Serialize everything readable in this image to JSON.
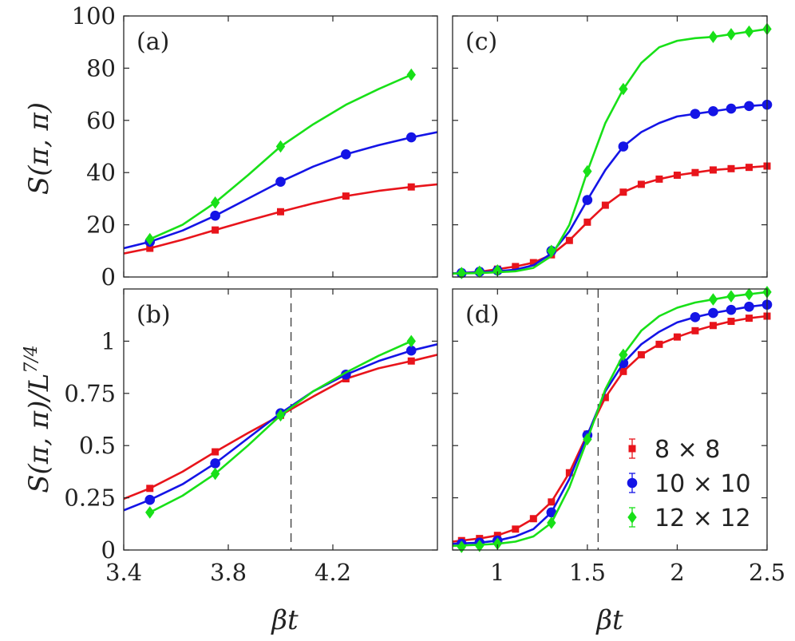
{
  "figure": {
    "ylabel_top": "S(π, π)",
    "ylabel_bottom": "S(π, π)/L",
    "ylabel_bottom_exp": "7/4",
    "xlabel": "βt"
  },
  "colors": {
    "8x8": "#e8141b",
    "10x10": "#1414e6",
    "12x12": "#18e018",
    "axis": "#262626",
    "dashed": "#444444"
  },
  "legend": {
    "placement": "bottom-right of panel (d)",
    "entries": [
      {
        "key": "8x8",
        "label": "8 × 8",
        "marker": "square"
      },
      {
        "key": "10x10",
        "label": "10 × 10",
        "marker": "circle"
      },
      {
        "key": "12x12",
        "label": "12 × 12",
        "marker": "diamond"
      }
    ]
  },
  "chart_data": [
    {
      "panel": "(a)",
      "type": "line",
      "xlim": [
        3.4,
        4.6
      ],
      "ylim": [
        0,
        100
      ],
      "xticks": [
        3.4,
        3.8,
        4.2
      ],
      "xtick_labels": [
        "3.4",
        "3.8",
        "4.2"
      ],
      "yticks": [
        0,
        20,
        40,
        60,
        80,
        100
      ],
      "ytick_labels": [
        "0",
        "20",
        "40",
        "60",
        "80",
        "100"
      ],
      "show_xtick_labels": false,
      "show_ytick_labels": true,
      "series": [
        {
          "key": "8x8",
          "x": [
            3.5,
            3.75,
            4.0,
            4.25,
            4.5
          ],
          "y": [
            11.0,
            18.0,
            25.0,
            31.0,
            34.5
          ],
          "curve_x": [
            3.4,
            3.5,
            3.625,
            3.75,
            3.875,
            4.0,
            4.125,
            4.25,
            4.375,
            4.5,
            4.6
          ],
          "curve_y": [
            9.0,
            11.0,
            14.3,
            18.0,
            21.6,
            25.0,
            28.2,
            31.0,
            33.0,
            34.5,
            35.5
          ]
        },
        {
          "key": "10x10",
          "x": [
            3.5,
            3.75,
            4.0,
            4.25,
            4.5
          ],
          "y": [
            13.5,
            23.5,
            36.5,
            47.0,
            53.5
          ],
          "curve_x": [
            3.4,
            3.5,
            3.625,
            3.75,
            3.875,
            4.0,
            4.125,
            4.25,
            4.375,
            4.5,
            4.6
          ],
          "curve_y": [
            11.0,
            13.5,
            17.8,
            23.5,
            30.0,
            36.5,
            42.3,
            47.0,
            50.5,
            53.5,
            55.5
          ]
        },
        {
          "key": "12x12",
          "x": [
            3.5,
            3.75,
            4.0,
            4.5
          ],
          "y": [
            14.5,
            28.5,
            50.0,
            77.5
          ],
          "curve_x": [
            3.5,
            3.625,
            3.75,
            3.875,
            4.0,
            4.125,
            4.25,
            4.375,
            4.5
          ],
          "curve_y": [
            14.5,
            20.0,
            28.5,
            39.0,
            50.0,
            58.5,
            66.0,
            72.0,
            77.5
          ]
        }
      ]
    },
    {
      "panel": "(b)",
      "type": "line",
      "xlim": [
        3.4,
        4.6
      ],
      "ylim": [
        0,
        1.25
      ],
      "xticks": [
        3.4,
        3.8,
        4.2
      ],
      "xtick_labels": [
        "3.4",
        "3.8",
        "4.2"
      ],
      "yticks": [
        0,
        0.25,
        0.5,
        0.75,
        1
      ],
      "ytick_labels": [
        "0",
        "0.25",
        "0.5",
        "0.75",
        "1"
      ],
      "show_xtick_labels": true,
      "show_ytick_labels": true,
      "vline": 4.04,
      "series": [
        {
          "key": "8x8",
          "x": [
            3.5,
            3.75,
            4.0,
            4.25,
            4.5
          ],
          "y": [
            0.295,
            0.47,
            0.645,
            0.82,
            0.905
          ],
          "curve_x": [
            3.4,
            3.5,
            3.625,
            3.75,
            3.875,
            4.0,
            4.125,
            4.25,
            4.375,
            4.5,
            4.6
          ],
          "curve_y": [
            0.245,
            0.295,
            0.375,
            0.47,
            0.56,
            0.645,
            0.735,
            0.82,
            0.87,
            0.905,
            0.935
          ]
        },
        {
          "key": "10x10",
          "x": [
            3.5,
            3.75,
            4.0,
            4.25,
            4.5
          ],
          "y": [
            0.24,
            0.415,
            0.655,
            0.84,
            0.955
          ],
          "curve_x": [
            3.4,
            3.5,
            3.625,
            3.75,
            3.875,
            4.0,
            4.125,
            4.25,
            4.375,
            4.5,
            4.6
          ],
          "curve_y": [
            0.19,
            0.24,
            0.315,
            0.415,
            0.535,
            0.655,
            0.76,
            0.84,
            0.905,
            0.955,
            0.985
          ]
        },
        {
          "key": "12x12",
          "x": [
            3.5,
            3.75,
            4.0,
            4.5
          ],
          "y": [
            0.18,
            0.365,
            0.645,
            1.0
          ],
          "curve_x": [
            3.5,
            3.625,
            3.75,
            3.875,
            4.0,
            4.125,
            4.25,
            4.375,
            4.5
          ],
          "curve_y": [
            0.18,
            0.26,
            0.365,
            0.5,
            0.645,
            0.76,
            0.85,
            0.93,
            1.0
          ]
        }
      ]
    },
    {
      "panel": "(c)",
      "type": "line",
      "xlim": [
        0.75,
        2.5
      ],
      "ylim": [
        0,
        100
      ],
      "xticks": [
        1,
        1.5,
        2,
        2.5
      ],
      "xtick_labels": [
        "1",
        "1.5",
        "2",
        "2.5"
      ],
      "yticks": [
        0,
        20,
        40,
        60,
        80,
        100
      ],
      "ytick_labels": [
        "0",
        "20",
        "40",
        "60",
        "80",
        "100"
      ],
      "show_xtick_labels": false,
      "show_ytick_labels": false,
      "series": [
        {
          "key": "8x8",
          "x": [
            0.8,
            0.9,
            1.0,
            1.1,
            1.2,
            1.3,
            1.4,
            1.5,
            1.6,
            1.7,
            1.8,
            1.9,
            2.0,
            2.1,
            2.2,
            2.3,
            2.4,
            2.5
          ],
          "y": [
            1.5,
            2.0,
            3.0,
            4.0,
            5.5,
            8.5,
            14.0,
            21.0,
            27.5,
            32.5,
            35.5,
            37.5,
            39.0,
            40.0,
            41.0,
            41.5,
            42.0,
            42.5
          ],
          "curve_x": [
            0.75,
            0.8,
            0.9,
            1.0,
            1.1,
            1.2,
            1.3,
            1.4,
            1.5,
            1.6,
            1.7,
            1.8,
            1.9,
            2.0,
            2.1,
            2.2,
            2.3,
            2.4,
            2.5
          ],
          "curve_y": [
            1.4,
            1.5,
            2.0,
            3.0,
            4.0,
            5.5,
            8.5,
            14.0,
            21.0,
            27.5,
            32.5,
            35.5,
            37.5,
            39.0,
            40.0,
            41.0,
            41.5,
            42.0,
            42.5
          ]
        },
        {
          "key": "10x10",
          "x": [
            0.8,
            0.9,
            1.0,
            1.3,
            1.5,
            1.7,
            2.1,
            2.2,
            2.3,
            2.4,
            2.5
          ],
          "y": [
            1.5,
            2.0,
            2.5,
            10.0,
            29.5,
            50.0,
            62.5,
            63.5,
            64.5,
            65.5,
            66.0
          ],
          "curve_x": [
            0.75,
            0.9,
            1.0,
            1.1,
            1.2,
            1.3,
            1.4,
            1.5,
            1.6,
            1.7,
            1.8,
            1.9,
            2.0,
            2.1,
            2.2,
            2.3,
            2.4,
            2.5
          ],
          "curve_y": [
            1.4,
            1.8,
            2.2,
            2.8,
            4.5,
            9.0,
            17.5,
            29.5,
            41.0,
            50.0,
            55.5,
            59.0,
            61.5,
            62.5,
            63.5,
            64.5,
            65.5,
            66.0
          ]
        },
        {
          "key": "12x12",
          "x": [
            0.8,
            0.9,
            1.0,
            1.3,
            1.5,
            1.7,
            2.2,
            2.3,
            2.4,
            2.5
          ],
          "y": [
            1.5,
            2.0,
            2.5,
            10.0,
            40.5,
            72.0,
            92.0,
            93.0,
            94.0,
            95.0
          ],
          "curve_x": [
            0.75,
            0.9,
            1.0,
            1.1,
            1.2,
            1.3,
            1.4,
            1.45,
            1.5,
            1.6,
            1.7,
            1.8,
            1.9,
            2.0,
            2.1,
            2.2,
            2.3,
            2.4,
            2.5
          ],
          "curve_y": [
            1.3,
            1.5,
            1.8,
            2.2,
            3.5,
            8.0,
            20.0,
            30.0,
            40.5,
            59.0,
            72.0,
            82.0,
            88.0,
            90.5,
            91.5,
            92.0,
            93.0,
            94.0,
            95.0
          ]
        }
      ]
    },
    {
      "panel": "(d)",
      "type": "line",
      "xlim": [
        0.75,
        2.5
      ],
      "ylim": [
        0,
        1.25
      ],
      "xticks": [
        1,
        1.5,
        2,
        2.5
      ],
      "xtick_labels": [
        "1",
        "1.5",
        "2",
        "2.5"
      ],
      "yticks": [
        0,
        0.25,
        0.5,
        0.75,
        1
      ],
      "ytick_labels": [
        "0",
        "0.25",
        "0.5",
        "0.75",
        "1"
      ],
      "show_xtick_labels": true,
      "show_ytick_labels": false,
      "vline": 1.56,
      "series": [
        {
          "key": "8x8",
          "x": [
            0.8,
            0.9,
            1.0,
            1.1,
            1.2,
            1.3,
            1.4,
            1.5,
            1.6,
            1.7,
            1.8,
            1.9,
            2.0,
            2.1,
            2.2,
            2.3,
            2.4,
            2.5
          ],
          "y": [
            0.045,
            0.055,
            0.07,
            0.1,
            0.15,
            0.23,
            0.37,
            0.555,
            0.73,
            0.855,
            0.935,
            0.985,
            1.02,
            1.05,
            1.075,
            1.095,
            1.11,
            1.12
          ],
          "curve_x": [
            0.75,
            0.8,
            0.9,
            1.0,
            1.1,
            1.2,
            1.3,
            1.4,
            1.5,
            1.6,
            1.7,
            1.8,
            1.9,
            2.0,
            2.1,
            2.2,
            2.3,
            2.4,
            2.5
          ],
          "curve_y": [
            0.04,
            0.045,
            0.055,
            0.07,
            0.1,
            0.15,
            0.23,
            0.37,
            0.555,
            0.73,
            0.855,
            0.935,
            0.985,
            1.02,
            1.05,
            1.075,
            1.095,
            1.11,
            1.12
          ]
        },
        {
          "key": "10x10",
          "x": [
            0.8,
            0.9,
            1.0,
            1.3,
            1.5,
            1.7,
            2.1,
            2.2,
            2.3,
            2.4,
            2.5
          ],
          "y": [
            0.03,
            0.035,
            0.045,
            0.18,
            0.55,
            0.895,
            1.115,
            1.135,
            1.15,
            1.165,
            1.175
          ],
          "curve_x": [
            0.75,
            0.9,
            1.0,
            1.1,
            1.2,
            1.3,
            1.4,
            1.5,
            1.6,
            1.7,
            1.8,
            1.9,
            2.0,
            2.1,
            2.2,
            2.3,
            2.4,
            2.5
          ],
          "curve_y": [
            0.03,
            0.035,
            0.045,
            0.065,
            0.1,
            0.18,
            0.34,
            0.55,
            0.76,
            0.895,
            0.985,
            1.045,
            1.09,
            1.115,
            1.135,
            1.15,
            1.165,
            1.175
          ]
        },
        {
          "key": "12x12",
          "x": [
            0.8,
            0.9,
            1.0,
            1.3,
            1.5,
            1.7,
            2.2,
            2.3,
            2.4,
            2.5
          ],
          "y": [
            0.015,
            0.02,
            0.03,
            0.13,
            0.53,
            0.935,
            1.2,
            1.215,
            1.225,
            1.235
          ],
          "curve_x": [
            0.75,
            0.9,
            1.0,
            1.1,
            1.2,
            1.3,
            1.4,
            1.5,
            1.6,
            1.7,
            1.8,
            1.9,
            2.0,
            2.1,
            2.2,
            2.3,
            2.4,
            2.5
          ],
          "curve_y": [
            0.02,
            0.025,
            0.03,
            0.04,
            0.065,
            0.13,
            0.3,
            0.53,
            0.77,
            0.935,
            1.05,
            1.12,
            1.16,
            1.185,
            1.2,
            1.215,
            1.225,
            1.235
          ]
        }
      ]
    }
  ]
}
